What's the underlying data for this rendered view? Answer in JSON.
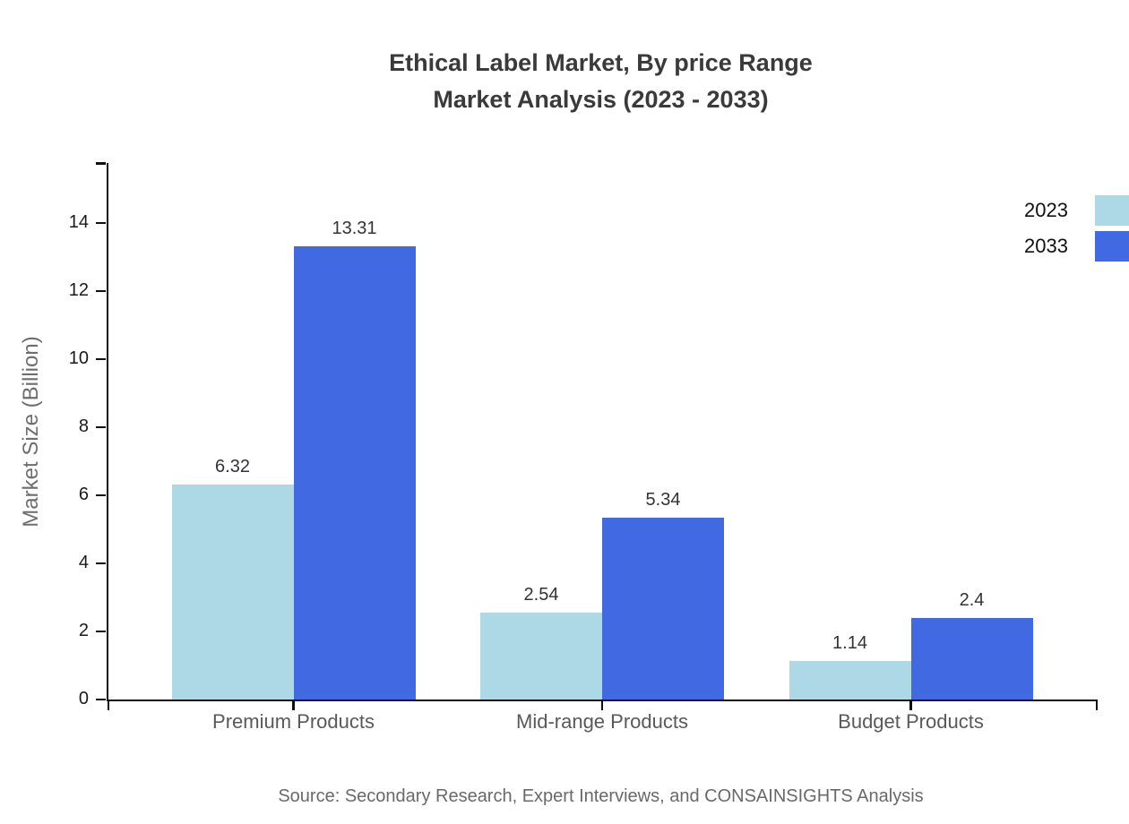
{
  "chart": {
    "title_line1": "Ethical Label Market, By price Range",
    "title_line2": "Market Analysis (2023 - 2033)",
    "source": "Source: Secondary Research, Expert Interviews, and CONSAINSIGHTS Analysis"
  },
  "chart_data": {
    "type": "bar",
    "title": "Ethical Label Market, By price Range — Market Analysis (2023 - 2033)",
    "categories": [
      "Premium Products",
      "Mid-range Products",
      "Budget Products"
    ],
    "series": [
      {
        "name": "2023",
        "color": "#ADD8E6",
        "values": [
          6.32,
          2.54,
          1.14
        ]
      },
      {
        "name": "2033",
        "color": "#4169E1",
        "values": [
          13.31,
          5.34,
          2.4
        ]
      }
    ],
    "xlabel": "",
    "ylabel": "Market Size (Billion)",
    "ylim": [
      0,
      14
    ],
    "yticks": [
      0,
      2,
      4,
      6,
      8,
      10,
      12,
      14
    ],
    "legend_position": "top-right",
    "grid": false,
    "axis_color": "#111111",
    "source": "Source: Secondary Research, Expert Interviews, and CONSAINSIGHTS Analysis"
  }
}
